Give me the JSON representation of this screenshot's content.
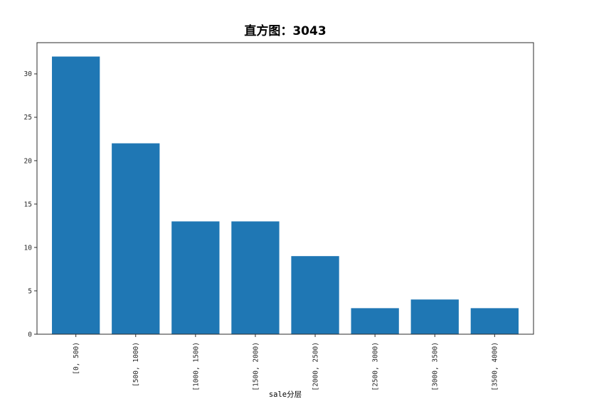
{
  "chart_data": {
    "type": "bar",
    "title": "直方图：3043",
    "xlabel": "sale分层",
    "ylabel": "",
    "categories": [
      "[0, 500)",
      "[500, 1000)",
      "[1000, 1500)",
      "[1500, 2000)",
      "[2000, 2500)",
      "[2500, 3000)",
      "[3000, 3500)",
      "[3500, 4000)"
    ],
    "values": [
      32,
      22,
      13,
      13,
      9,
      3,
      4,
      3
    ],
    "yticks": [
      0,
      5,
      10,
      15,
      20,
      25,
      30
    ],
    "ylim": [
      0,
      33.6
    ],
    "x_tick_rotation": 90,
    "bar_color": "#1f77b4",
    "spine_color": "#2b2b2b",
    "grid": false,
    "legend": "none"
  }
}
